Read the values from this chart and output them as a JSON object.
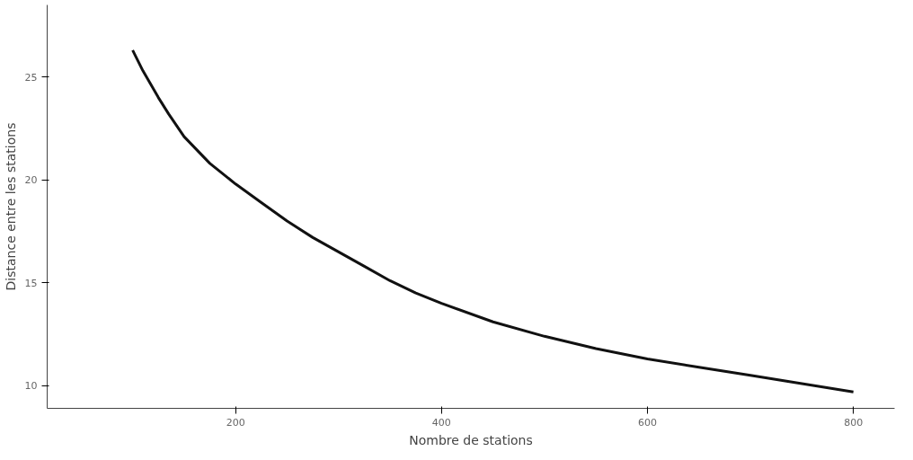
{
  "chart_data": {
    "type": "line",
    "xlabel": "Nombre de stations",
    "ylabel": "Distance entre les stations",
    "x": [
      100,
      110,
      125,
      135,
      150,
      175,
      200,
      225,
      250,
      275,
      300,
      325,
      350,
      375,
      400,
      450,
      500,
      550,
      600,
      650,
      700,
      750,
      800
    ],
    "series": [
      {
        "color": "#111111",
        "values": [
          26.3,
          25.3,
          24.0,
          23.2,
          22.1,
          20.8,
          19.8,
          18.9,
          18.0,
          17.2,
          16.5,
          15.8,
          15.1,
          14.5,
          14.0,
          13.1,
          12.4,
          11.8,
          11.3,
          10.9,
          10.5,
          10.1,
          9.7
        ]
      }
    ],
    "xlim": [
      17,
      840
    ],
    "ylim": [
      8.9,
      28.5
    ],
    "xticks": [
      200,
      400,
      600,
      800
    ],
    "yticks": [
      10,
      15,
      20,
      25
    ],
    "grid": false,
    "marker": "none",
    "line_style": "solid"
  }
}
